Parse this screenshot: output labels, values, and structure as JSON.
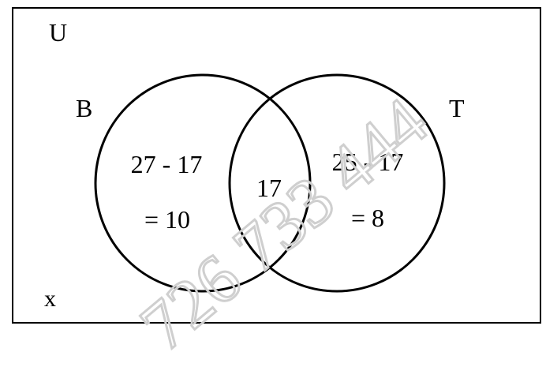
{
  "diagram": {
    "universe_label": "U",
    "set_b_label": "B",
    "set_t_label": "T",
    "outside_label": "x",
    "only_b": {
      "line1": "27 - 17",
      "line2": "= 10"
    },
    "intersection": "17",
    "only_t": {
      "line1": "25 - 17",
      "line2": "= 8"
    }
  },
  "watermark": "726 733 444",
  "colors": {
    "line": "#000000",
    "background": "#ffffff",
    "watermark": "#cfcfcf"
  }
}
